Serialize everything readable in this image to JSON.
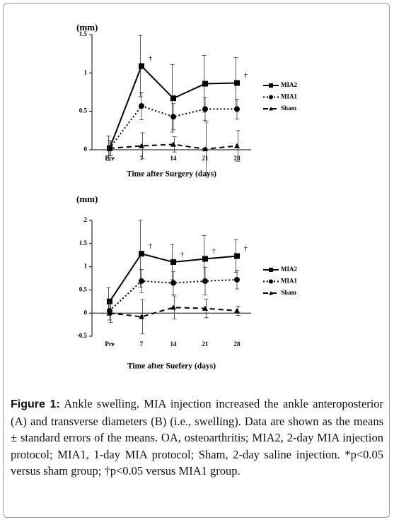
{
  "chart_data": [
    {
      "type": "line",
      "y_label": "(mm)",
      "x_label": "Time after Surgery (days)",
      "categories": [
        "Pre",
        "7",
        "14",
        "21",
        "28"
      ],
      "ylim": [
        0,
        1.5
      ],
      "yticks": [
        0,
        0.5,
        1,
        1.5
      ],
      "series": [
        {
          "name": "MIA2",
          "color": "#000000",
          "marker": "square",
          "line_style": "solid",
          "values": [
            0.02,
            1.09,
            0.67,
            0.86,
            0.87
          ],
          "errors": [
            0.16,
            0.4,
            0.44,
            0.37,
            0.33
          ]
        },
        {
          "name": "MIA1",
          "color": "#000000",
          "marker": "circle",
          "line_style": "dotted",
          "values": [
            0.02,
            0.57,
            0.43,
            0.53,
            0.53
          ],
          "errors": [
            0.1,
            0.18,
            0.17,
            0.15,
            0.13
          ]
        },
        {
          "name": "Sham",
          "color": "#000000",
          "marker": "triangle",
          "line_style": "dashed",
          "values": [
            0.02,
            0.05,
            0.07,
            0.01,
            0.05
          ],
          "errors": [
            0.1,
            0.17,
            0.1,
            0.35,
            0.2
          ]
        }
      ],
      "annotations": [
        {
          "text": "†",
          "x": "7"
        },
        {
          "text": "†",
          "x": "28"
        }
      ]
    },
    {
      "type": "line",
      "y_label": "(mm)",
      "x_label": "Time after Suefery (days)",
      "categories": [
        "Pre",
        "7",
        "14",
        "21",
        "28"
      ],
      "ylim": [
        -0.5,
        2
      ],
      "yticks": [
        -0.5,
        0,
        0.5,
        1,
        1.5,
        2
      ],
      "series": [
        {
          "name": "MIA2",
          "color": "#000000",
          "marker": "square",
          "line_style": "solid",
          "values": [
            0.25,
            1.28,
            1.1,
            1.17,
            1.23
          ],
          "errors": [
            0.3,
            0.72,
            0.38,
            0.5,
            0.35
          ]
        },
        {
          "name": "MIA1",
          "color": "#000000",
          "marker": "circle",
          "line_style": "dotted",
          "values": [
            0.05,
            0.69,
            0.65,
            0.69,
            0.72
          ],
          "errors": [
            0.2,
            0.25,
            0.25,
            0.3,
            0.2
          ]
        },
        {
          "name": "Sham",
          "color": "#000000",
          "marker": "triangle",
          "line_style": "dashed",
          "values": [
            0.0,
            -0.08,
            0.12,
            0.1,
            0.05
          ],
          "errors": [
            0.2,
            0.37,
            0.25,
            0.2,
            0.1
          ]
        }
      ],
      "annotations": [
        {
          "text": "†",
          "x": "7"
        },
        {
          "text": "†",
          "x": "14"
        },
        {
          "text": "†",
          "x": "21"
        },
        {
          "text": "†",
          "x": "28"
        }
      ]
    }
  ],
  "caption": {
    "label": "Figure 1:",
    "text": "Ankle swelling. MIA injection increased the ankle anteroposterior (A) and transverse diameters (B) (i.e., swelling). Data are shown as the means ± standard errors of the means. OA, osteoarthritis; MIA2, 2-day MIA injection protocol; MIA1, 1-day MIA protocol; Sham, 2-day saline injection. *p<0.05 versus sham group; †p<0.05 versus MIA1 group."
  }
}
